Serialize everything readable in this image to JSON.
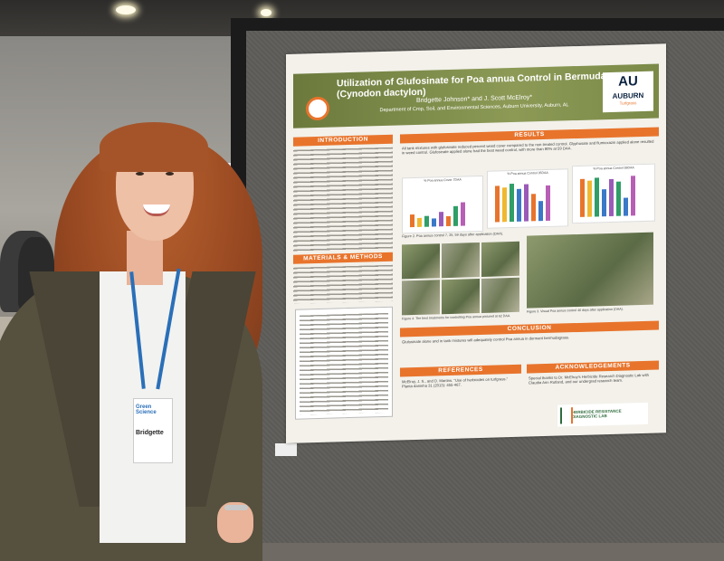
{
  "poster": {
    "title": "Utilization of Glufosinate for Poa annua Control in Bermudagrass (Cynodon dactylon)",
    "authors": "Bridgette Johnson* and J. Scott McElroy*",
    "affiliation": "Department of Crop, Soil, and Environmental Sciences, Auburn University, Auburn, AL",
    "logo": {
      "mark": "AU",
      "name": "AUBURN",
      "sub": "Turfgrass"
    },
    "sections": {
      "introduction": "INTRODUCTION",
      "materials": "MATERIALS & METHODS",
      "results": "RESULTS",
      "conclusion": "CONCLUSION",
      "references": "REFERENCES",
      "acknowledgements": "ACKNOWLEDGEMENTS"
    },
    "results_text": "All tank mixtures with glufosinate reduced percent weed cover compared to the non-treated control. Glyphosate and flumioxazin applied alone resulted in weed control. Glufosinate applied alone had the best weed control, with more than 80% at 59 DAA.",
    "chart_titles": [
      "% Poa annua Cover 7DAA",
      "% Poa annua Control 35DAA",
      "% Poa annua Control 59DAA"
    ],
    "figure_captions": [
      "Figure 2. Poa annua control 7, 35, 59 days after application (DAA).",
      "Figure 4. The best treatments for controlling Poa annua pictured at 62 DAA.",
      "Figure 3. Visual Poa annua control 46 days after application (DAA)."
    ],
    "conclusion_text": "Glufosinate alone and in tank mixtures will adequately control Poa annua in dormant bermudagrass.",
    "references_text": "McElroy, J. S., and D. Martins. \"Use of herbicides on turfgrass.\" Planta daninha 31 (2013): 455-467.",
    "acknowledgements_text": "Special thanks to Dr. McElroy's Herbicide Research Diagnostic Lab with Claudia Ann Rutland, and our undergrad research team.",
    "lab_logo": "HERBICIDE RESISTANCE DIAGNOSTIC LAB"
  },
  "badge": {
    "event": "Green Science",
    "name": "Bridgette"
  }
}
